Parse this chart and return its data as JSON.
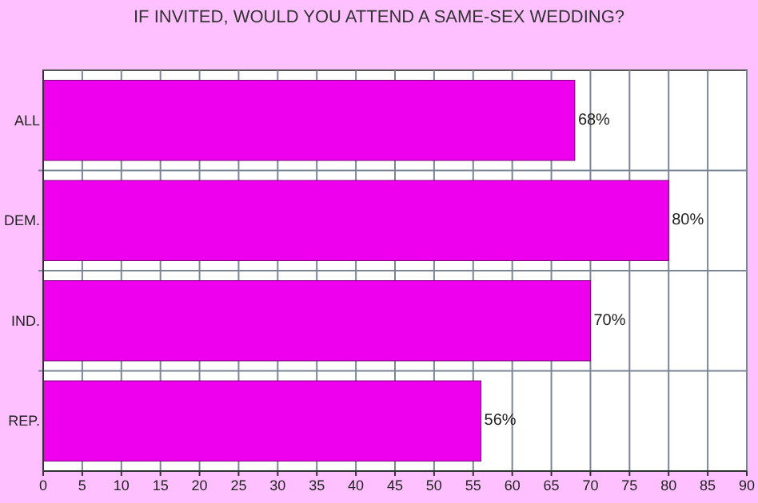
{
  "chart_data": {
    "type": "bar",
    "orientation": "horizontal",
    "title": "IF INVITED, WOULD YOU ATTEND A SAME-SEX WEDDING?",
    "categories": [
      "ALL",
      "DEM.",
      "IND.",
      "REP."
    ],
    "values": [
      68,
      80,
      70,
      56
    ],
    "value_labels": [
      "68%",
      "80%",
      "70%",
      "56%"
    ],
    "color": "#ee00ee",
    "xlim": [
      0,
      90
    ],
    "xticks": [
      0,
      5,
      10,
      15,
      20,
      25,
      30,
      35,
      40,
      45,
      50,
      55,
      60,
      65,
      70,
      75,
      80,
      85,
      90
    ],
    "grid": true
  }
}
